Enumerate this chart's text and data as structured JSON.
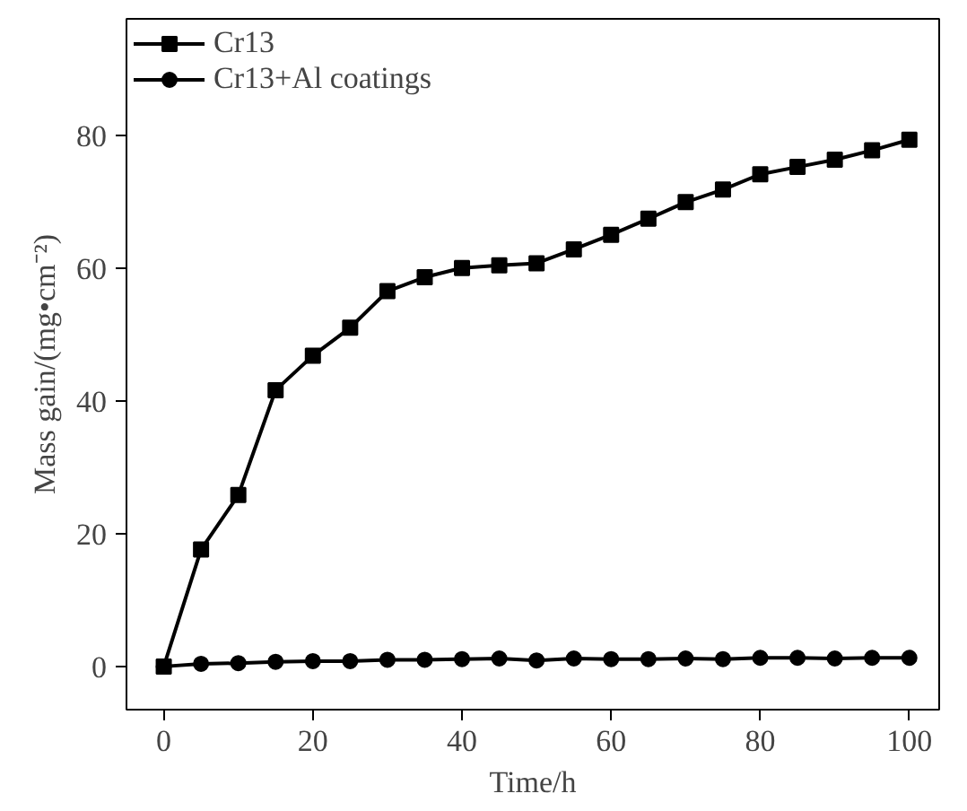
{
  "chart_data": {
    "type": "line",
    "xlabel": "Time/h",
    "ylabel": "Mass gain/(mg•cm⁻²)",
    "x": [
      0,
      5,
      10,
      15,
      20,
      25,
      30,
      35,
      40,
      45,
      50,
      55,
      60,
      65,
      70,
      75,
      80,
      85,
      90,
      95,
      100
    ],
    "series": [
      {
        "name": "Cr13",
        "color": "#000000",
        "marker": "square",
        "values": [
          0,
          17.6,
          25.8,
          41.6,
          46.8,
          51,
          56.5,
          58.6,
          60,
          60.4,
          60.7,
          62.8,
          65,
          67.4,
          69.9,
          71.8,
          74.1,
          75.2,
          76.3,
          77.7,
          79.3
        ]
      },
      {
        "name": "Cr13+Al coatings",
        "color": "#000000",
        "marker": "circle",
        "values": [
          0,
          0.4,
          0.5,
          0.7,
          0.8,
          0.8,
          1,
          1,
          1.1,
          1.2,
          0.9,
          1.2,
          1.1,
          1.1,
          1.2,
          1.1,
          1.3,
          1.3,
          1.2,
          1.3,
          1.3
        ]
      }
    ],
    "xlim": [
      -5,
      104
    ],
    "ylim": [
      -6.5,
      97.5
    ],
    "xticks": [
      0,
      20,
      40,
      60,
      80,
      100
    ],
    "yticks": [
      0,
      20,
      40,
      60,
      80
    ],
    "grid": false,
    "legend": "top left",
    "line_style": "solid"
  }
}
